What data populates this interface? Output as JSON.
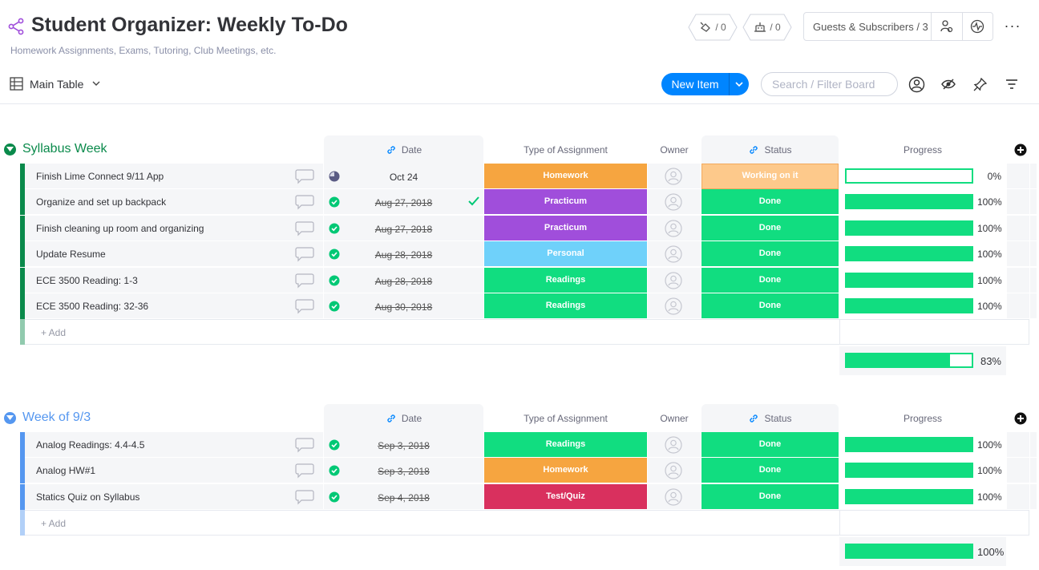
{
  "board": {
    "title": "Student Organizer: Weekly To-Do",
    "description": "Homework Assignments, Exams, Tutoring, Club Meetings, etc.",
    "activity_count": "/ 0",
    "integrations_count": "/ 0",
    "guests_label": "Guests & Subscribers / 3",
    "more": "···"
  },
  "toolbar": {
    "view_label": "Main Table",
    "new_item_label": "New Item",
    "search_placeholder": "Search / Filter Board"
  },
  "columns": {
    "date": "Date",
    "type": "Type of Assignment",
    "owner": "Owner",
    "status": "Status",
    "progress": "Progress"
  },
  "colors": {
    "done": "#11dd80",
    "working": "#fdc98b",
    "homework": "#f6a540",
    "practicum": "#a04edb",
    "personal": "#6fd1fa",
    "readings": "#11dd80",
    "quiz": "#d9305e",
    "group1": "#0a8a4b",
    "group2": "#5597f0"
  },
  "groups": [
    {
      "title": "Syllabus Week",
      "color": "#0a8a4b",
      "add_label": "+ Add",
      "summary_progress": 83,
      "summary_text": "83%",
      "items": [
        {
          "name": "Finish Lime Connect 9/11 App",
          "date": "Oct 24",
          "date_done": false,
          "type": "Homework",
          "type_color": "#f6a540",
          "status": "Working on it",
          "status_color": "#fdc98b",
          "progress": 0,
          "progress_text": "0%",
          "date_check": false
        },
        {
          "name": "Organize and set up backpack",
          "date": "Aug 27, 2018",
          "date_done": true,
          "type": "Practicum",
          "type_color": "#a04edb",
          "status": "Done",
          "status_color": "#11dd80",
          "progress": 100,
          "progress_text": "100%",
          "date_check": true
        },
        {
          "name": "Finish cleaning up room and organizing",
          "date": "Aug 27, 2018",
          "date_done": true,
          "type": "Practicum",
          "type_color": "#a04edb",
          "status": "Done",
          "status_color": "#11dd80",
          "progress": 100,
          "progress_text": "100%",
          "date_check": false
        },
        {
          "name": "Update Resume",
          "date": "Aug 28, 2018",
          "date_done": true,
          "type": "Personal",
          "type_color": "#6fd1fa",
          "status": "Done",
          "status_color": "#11dd80",
          "progress": 100,
          "progress_text": "100%",
          "date_check": false
        },
        {
          "name": "ECE 3500 Reading: 1-3",
          "date": "Aug 28, 2018",
          "date_done": true,
          "type": "Readings",
          "type_color": "#11dd80",
          "status": "Done",
          "status_color": "#11dd80",
          "progress": 100,
          "progress_text": "100%",
          "date_check": false
        },
        {
          "name": "ECE 3500 Reading: 32-36",
          "date": "Aug 30, 2018",
          "date_done": true,
          "type": "Readings",
          "type_color": "#11dd80",
          "status": "Done",
          "status_color": "#11dd80",
          "progress": 100,
          "progress_text": "100%",
          "date_check": false
        }
      ]
    },
    {
      "title": "Week of 9/3",
      "color": "#5597f0",
      "add_label": "+ Add",
      "summary_progress": 100,
      "summary_text": "100%",
      "items": [
        {
          "name": "Analog Readings: 4.4-4.5",
          "date": "Sep 3, 2018",
          "date_done": true,
          "type": "Readings",
          "type_color": "#11dd80",
          "status": "Done",
          "status_color": "#11dd80",
          "progress": 100,
          "progress_text": "100%",
          "date_check": false
        },
        {
          "name": "Analog HW#1",
          "date": "Sep 3, 2018",
          "date_done": true,
          "type": "Homework",
          "type_color": "#f6a540",
          "status": "Done",
          "status_color": "#11dd80",
          "progress": 100,
          "progress_text": "100%",
          "date_check": false
        },
        {
          "name": "Statics Quiz on Syllabus",
          "date": "Sep 4, 2018",
          "date_done": true,
          "type": "Test/Quiz",
          "type_color": "#d9305e",
          "status": "Done",
          "status_color": "#11dd80",
          "progress": 100,
          "progress_text": "100%",
          "date_check": false
        }
      ]
    }
  ]
}
